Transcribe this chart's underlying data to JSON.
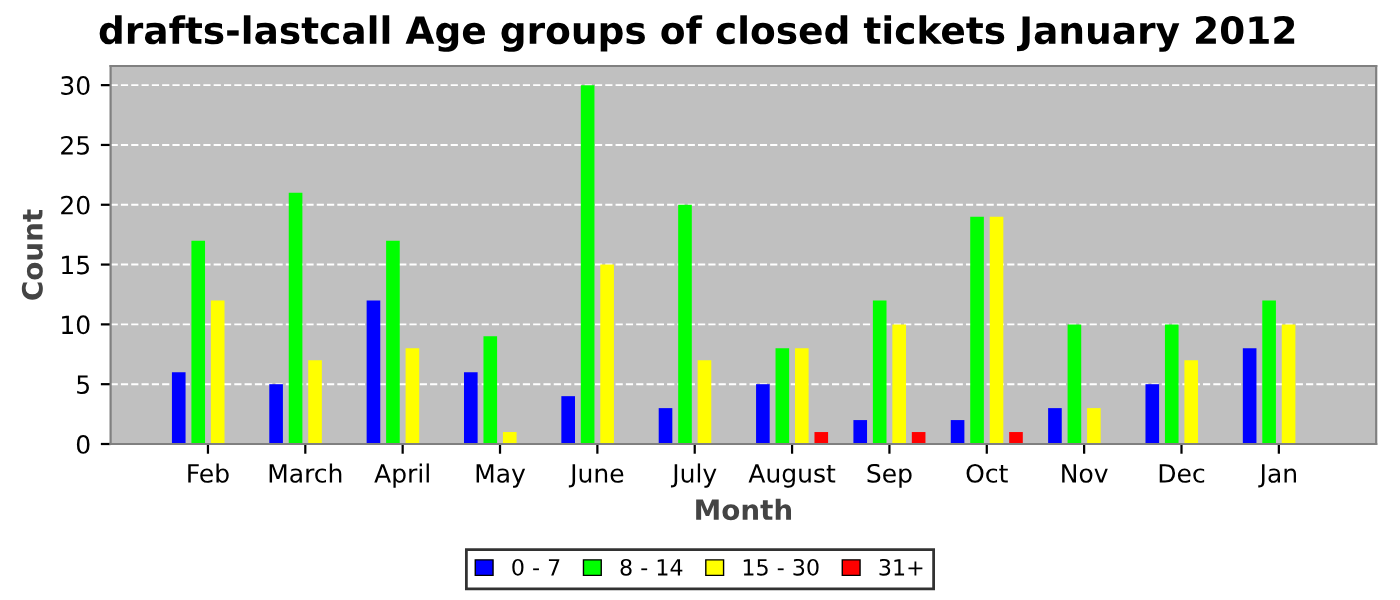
{
  "chart_data": {
    "type": "bar",
    "title": "drafts-lastcall Age groups of closed tickets January 2012",
    "xlabel": "Month",
    "ylabel": "Count",
    "categories": [
      "Feb",
      "March",
      "April",
      "May",
      "June",
      "July",
      "August",
      "Sep",
      "Oct",
      "Nov",
      "Dec",
      "Jan"
    ],
    "series": [
      {
        "name": "0 - 7",
        "color": "#0000ff",
        "values": [
          6,
          5,
          12,
          6,
          4,
          3,
          5,
          2,
          2,
          3,
          5,
          8
        ]
      },
      {
        "name": "8 - 14",
        "color": "#00ff00",
        "values": [
          17,
          21,
          17,
          9,
          30,
          20,
          8,
          12,
          19,
          10,
          10,
          12
        ]
      },
      {
        "name": "15 - 30",
        "color": "#ffff00",
        "values": [
          12,
          7,
          8,
          1,
          15,
          7,
          8,
          10,
          19,
          3,
          7,
          10
        ]
      },
      {
        "name": "31+",
        "color": "#ff0000",
        "values": [
          0,
          0,
          0,
          0,
          0,
          0,
          1,
          1,
          1,
          0,
          0,
          0
        ]
      }
    ],
    "ylim": [
      0,
      31.6
    ],
    "yticks": [
      0,
      5,
      10,
      15,
      20,
      25,
      30
    ],
    "grid": "y",
    "legend": "bottom"
  }
}
